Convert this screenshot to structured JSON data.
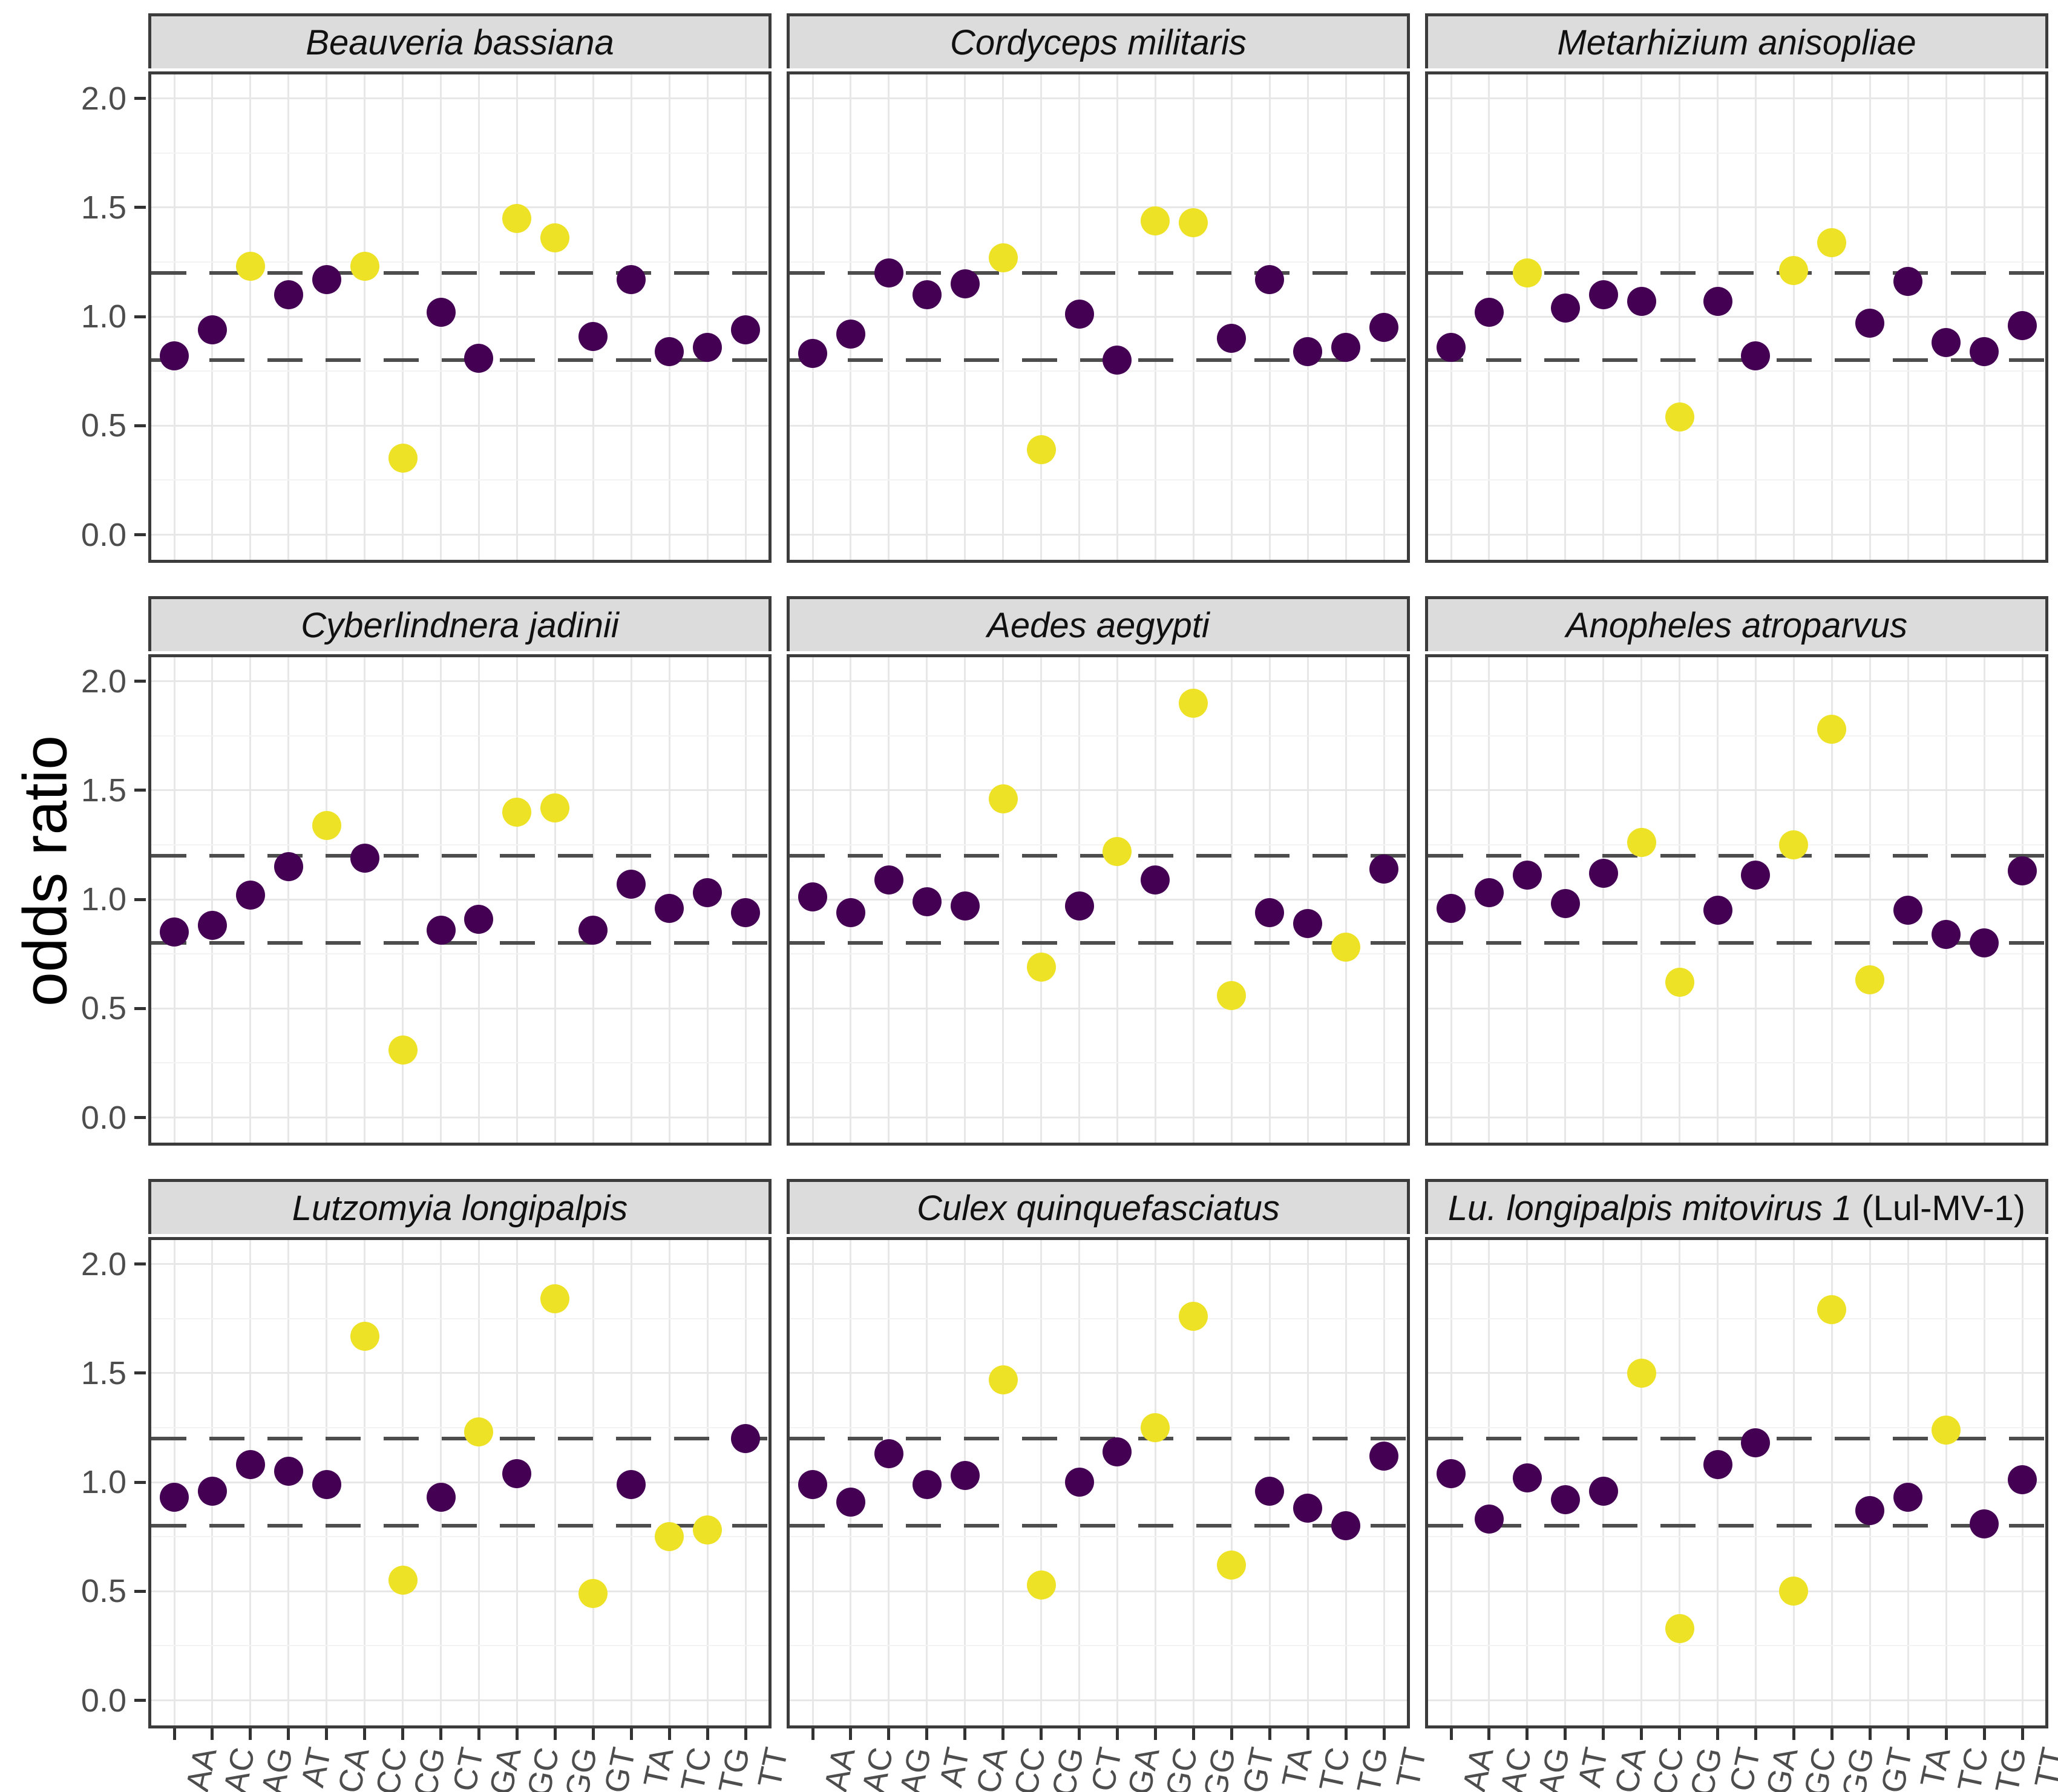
{
  "chart_data": {
    "type": "scatter",
    "title": "",
    "xlabel": "",
    "ylabel": "odds ratio",
    "legend_position": "none",
    "grid": "on",
    "categories": [
      "AA",
      "AC",
      "AG",
      "AT",
      "CA",
      "CC",
      "CG",
      "CT",
      "GA",
      "GC",
      "GG",
      "GT",
      "TA",
      "TC",
      "TG",
      "TT"
    ],
    "y_axis_ticks": [
      "2.0",
      "1.5",
      "1.0",
      "0.5",
      "0.0"
    ],
    "y_tick_values": [
      2.0,
      1.5,
      1.0,
      0.5,
      0.0
    ],
    "y_minor_gridlines": [
      1.75,
      1.25,
      0.75,
      0.25
    ],
    "ylim": [
      -0.115,
      2.11
    ],
    "threshold_lines": [
      1.2,
      0.8
    ],
    "colors": {
      "point_within_range": "#440154",
      "point_outside_range": "#EDE226",
      "threshold_line": "#4d4d4d",
      "strip_background": "#DCDCDC",
      "panel_border": "#3c3c3c"
    },
    "panels": [
      {
        "title_italic": "Beauveria bassiana",
        "title_plain": "",
        "values": [
          0.82,
          0.94,
          1.23,
          1.1,
          1.17,
          1.23,
          0.35,
          1.02,
          0.81,
          1.45,
          1.36,
          0.91,
          1.17,
          0.84,
          0.86,
          0.94
        ],
        "outside": [
          0,
          0,
          1,
          0,
          0,
          1,
          1,
          0,
          0,
          1,
          1,
          0,
          0,
          0,
          0,
          0
        ]
      },
      {
        "title_italic": "Cordyceps militaris",
        "title_plain": "",
        "values": [
          0.83,
          0.92,
          1.2,
          1.1,
          1.15,
          1.27,
          0.39,
          1.01,
          0.8,
          1.44,
          1.43,
          0.9,
          1.17,
          0.84,
          0.86,
          0.95
        ],
        "outside": [
          0,
          0,
          0,
          0,
          0,
          1,
          1,
          0,
          0,
          1,
          1,
          0,
          0,
          0,
          0,
          0
        ]
      },
      {
        "title_italic": "Metarhizium anisopliae",
        "title_plain": "",
        "values": [
          0.86,
          1.02,
          1.2,
          1.04,
          1.1,
          1.07,
          0.54,
          1.07,
          0.82,
          1.21,
          1.34,
          0.97,
          1.16,
          0.88,
          0.84,
          0.96
        ],
        "outside": [
          0,
          0,
          1,
          0,
          0,
          0,
          1,
          0,
          0,
          1,
          1,
          0,
          0,
          0,
          0,
          0
        ]
      },
      {
        "title_italic": "Cyberlindnera jadinii",
        "title_plain": "",
        "values": [
          0.85,
          0.88,
          1.02,
          1.15,
          1.34,
          1.19,
          0.31,
          0.86,
          0.91,
          1.4,
          1.42,
          0.86,
          1.07,
          0.96,
          1.03,
          0.94
        ],
        "outside": [
          0,
          0,
          0,
          0,
          1,
          0,
          1,
          0,
          0,
          1,
          1,
          0,
          0,
          0,
          0,
          0
        ]
      },
      {
        "title_italic": "Aedes aegypti",
        "title_plain": "",
        "values": [
          1.01,
          0.94,
          1.09,
          0.99,
          0.97,
          1.46,
          0.69,
          0.97,
          1.22,
          1.09,
          1.9,
          0.56,
          0.94,
          0.89,
          0.78,
          1.14
        ],
        "outside": [
          0,
          0,
          0,
          0,
          0,
          1,
          1,
          0,
          1,
          0,
          1,
          1,
          0,
          0,
          1,
          0
        ]
      },
      {
        "title_italic": "Anopheles atroparvus",
        "title_plain": "",
        "values": [
          0.96,
          1.03,
          1.11,
          0.98,
          1.12,
          1.26,
          0.62,
          0.95,
          1.11,
          1.25,
          1.78,
          0.63,
          0.95,
          0.84,
          0.8,
          1.13
        ],
        "outside": [
          0,
          0,
          0,
          0,
          0,
          1,
          1,
          0,
          0,
          1,
          1,
          1,
          0,
          0,
          0,
          0
        ]
      },
      {
        "title_italic": "Lutzomyia longipalpis",
        "title_plain": "",
        "values": [
          0.93,
          0.96,
          1.08,
          1.05,
          0.99,
          1.67,
          0.55,
          0.93,
          1.23,
          1.04,
          1.84,
          0.49,
          0.99,
          0.75,
          0.78,
          1.2
        ],
        "outside": [
          0,
          0,
          0,
          0,
          0,
          1,
          1,
          0,
          1,
          0,
          1,
          1,
          0,
          1,
          1,
          0
        ]
      },
      {
        "title_italic": "Culex quinquefasciatus",
        "title_plain": "",
        "values": [
          0.99,
          0.91,
          1.13,
          0.99,
          1.03,
          1.47,
          0.53,
          1.0,
          1.14,
          1.25,
          1.76,
          0.62,
          0.96,
          0.88,
          0.8,
          1.12
        ],
        "outside": [
          0,
          0,
          0,
          0,
          0,
          1,
          1,
          0,
          0,
          1,
          1,
          1,
          0,
          0,
          0,
          0
        ]
      },
      {
        "title_italic": "Lu. longipalpis mitovirus 1",
        "title_plain": " (Lul-MV-1)",
        "values": [
          1.04,
          0.83,
          1.02,
          0.92,
          0.96,
          1.5,
          0.33,
          1.08,
          1.18,
          0.5,
          1.79,
          0.87,
          0.93,
          1.24,
          0.81,
          1.01
        ],
        "outside": [
          0,
          0,
          0,
          0,
          0,
          1,
          1,
          0,
          0,
          1,
          1,
          0,
          0,
          1,
          0,
          0
        ]
      }
    ]
  }
}
